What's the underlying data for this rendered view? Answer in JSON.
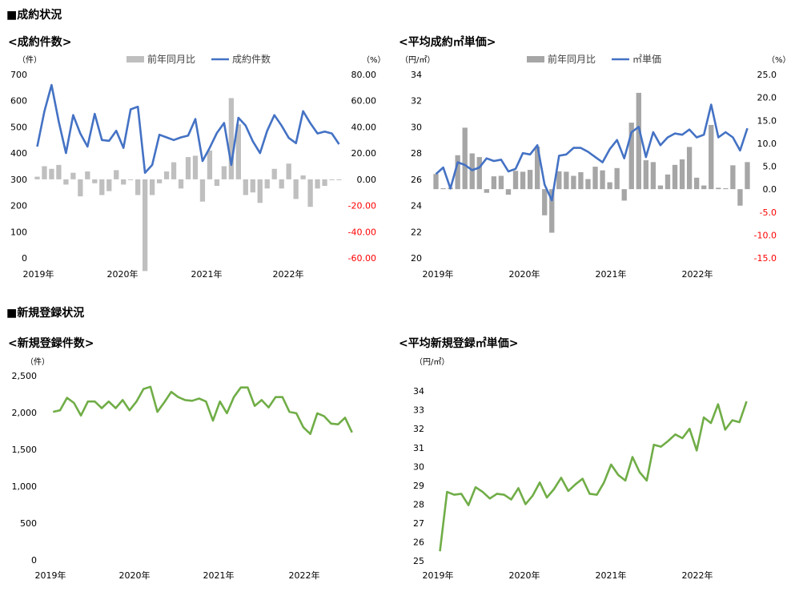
{
  "section_titles": {
    "contracts": "■成約状況",
    "registrations": "■新規登録状況"
  },
  "chart_data": [
    {
      "id": "contract-count",
      "type": "bar-line",
      "title": "<成約件数>",
      "left_unit": "（件）",
      "right_unit": "（%）",
      "legend": {
        "bar": "前年同月比",
        "line": "成約件数"
      },
      "year_labels": [
        "2019年",
        "2020年",
        "2021年",
        "2022年"
      ],
      "left_ticks": [
        "0",
        "100",
        "200",
        "300",
        "400",
        "500",
        "600",
        "700"
      ],
      "right_ticks": [
        "-60.00",
        "-40.00",
        "-20.00",
        "0.00",
        "20.00",
        "40.00",
        "60.00",
        "80.00"
      ],
      "left_range": [
        0,
        700
      ],
      "right_range": [
        -60,
        80
      ],
      "months": 43,
      "colors": {
        "bar": "#bfbfbf",
        "line": "#4472c4",
        "negative_tick": "#ff0000"
      },
      "series": [
        {
          "name": "成約件数",
          "axis": "left",
          "values": [
            425,
            560,
            660,
            520,
            400,
            545,
            475,
            425,
            550,
            450,
            447,
            485,
            420,
            567,
            577,
            325,
            355,
            470,
            460,
            450,
            460,
            467,
            530,
            370,
            420,
            477,
            515,
            355,
            535,
            505,
            445,
            400,
            485,
            545,
            505,
            458,
            438,
            560,
            514,
            475,
            482,
            475,
            434
          ]
        },
        {
          "name": "前年同月比",
          "axis": "right",
          "values": [
            2,
            10,
            8,
            11,
            -4,
            5,
            -13,
            6,
            -3,
            -12,
            -9,
            7,
            -4,
            0,
            -12,
            -70,
            -12,
            -3,
            6,
            13,
            -7,
            17,
            18,
            -17,
            22,
            -5,
            10,
            62,
            42,
            -12,
            -10,
            -18,
            -7,
            8,
            -7,
            12,
            -15,
            3,
            -21,
            -7,
            -5,
            0,
            0
          ]
        }
      ]
    },
    {
      "id": "avg-contract-price",
      "type": "bar-line",
      "title": "<平均成約㎡単価>",
      "left_unit": "（円/㎡）",
      "right_unit": "（%）",
      "legend": {
        "bar": "前年同月比",
        "line": "㎡単価"
      },
      "year_labels": [
        "2019年",
        "2020年",
        "2021年",
        "2022年"
      ],
      "left_ticks": [
        "20",
        "22",
        "24",
        "26",
        "28",
        "30",
        "32",
        "34"
      ],
      "right_ticks": [
        "-15.0",
        "-10.0",
        "-5.0",
        "0.0",
        "5.0",
        "10.0",
        "15.0",
        "20.0",
        "25.0"
      ],
      "left_range": [
        20,
        34
      ],
      "right_range": [
        -15,
        25
      ],
      "months": 44,
      "colors": {
        "bar": "#a6a6a6",
        "line": "#4472c4",
        "negative_tick": "#ff0000"
      },
      "series": [
        {
          "name": "㎡単価",
          "axis": "left",
          "values": [
            26.4,
            26.9,
            25.3,
            27.3,
            27.1,
            26.7,
            26.9,
            27.6,
            27.4,
            27.5,
            26.6,
            26.8,
            28.0,
            27.9,
            28.6,
            25.6,
            24.4,
            27.8,
            27.9,
            28.4,
            28.4,
            28.1,
            27.7,
            27.3,
            28.3,
            29.0,
            27.6,
            29.6,
            30.0,
            27.7,
            29.6,
            28.6,
            29.2,
            29.5,
            29.4,
            29.8,
            29.2,
            29.4,
            31.7,
            29.2,
            29.6,
            29.2,
            28.2,
            29.9
          ]
        },
        {
          "name": "前年同月比",
          "axis": "right",
          "values": [
            3.3,
            0.2,
            0.3,
            7.4,
            13.4,
            7.8,
            7,
            -0.8,
            2.8,
            2.9,
            -1.2,
            4,
            3.8,
            4.2,
            9.3,
            -5.7,
            -9.5,
            3.9,
            3.8,
            2.9,
            3.7,
            2.2,
            4.9,
            4.1,
            1.5,
            4.6,
            -2.5,
            14.5,
            21,
            6.3,
            5.9,
            0.8,
            3.2,
            5.3,
            6.5,
            9.2,
            2.5,
            0.8,
            14,
            0.3,
            0.2,
            5.2,
            -3.6,
            5.9
          ]
        }
      ]
    },
    {
      "id": "new-registrations",
      "type": "line",
      "title": "<新規登録件数>",
      "left_unit": "（件）",
      "year_labels": [
        "2019年",
        "2020年",
        "2021年",
        "2022年"
      ],
      "left_ticks": [
        "0",
        "500",
        "1,000",
        "1,500",
        "2,000",
        "2,500"
      ],
      "left_range": [
        0,
        2500
      ],
      "months": 44,
      "colors": {
        "line": "#70ad47"
      },
      "series": [
        {
          "name": "新規登録件数",
          "values": [
            2010,
            2030,
            2200,
            2130,
            1960,
            2150,
            2150,
            2060,
            2150,
            2060,
            2170,
            2030,
            2150,
            2320,
            2350,
            2010,
            2140,
            2280,
            2210,
            2170,
            2160,
            2190,
            2150,
            1890,
            2150,
            1990,
            2210,
            2340,
            2340,
            2090,
            2170,
            2070,
            2210,
            2210,
            2010,
            1990,
            1800,
            1710,
            1990,
            1950,
            1850,
            1840,
            1930,
            1730
          ]
        }
      ]
    },
    {
      "id": "avg-new-registration-price",
      "type": "line",
      "title": "<平均新規登録㎡単価>",
      "left_unit": "（円/㎡）",
      "year_labels": [
        "2019年",
        "2020年",
        "2021年",
        "2022年"
      ],
      "left_ticks": [
        "25",
        "26",
        "27",
        "28",
        "29",
        "30",
        "31",
        "32",
        "33",
        "34"
      ],
      "left_range": [
        25,
        34.6
      ],
      "months": 44,
      "colors": {
        "line": "#70ad47"
      },
      "series": [
        {
          "name": "平均新規登録㎡単価",
          "values": [
            25.5,
            28.65,
            28.5,
            28.55,
            27.95,
            28.9,
            28.65,
            28.3,
            28.55,
            28.5,
            28.25,
            28.85,
            28.0,
            28.45,
            29.15,
            28.35,
            28.8,
            29.4,
            28.7,
            29.05,
            29.35,
            28.55,
            28.5,
            29.15,
            30.1,
            29.55,
            29.25,
            30.5,
            29.7,
            29.25,
            31.15,
            31.05,
            31.35,
            31.7,
            31.5,
            32.0,
            30.85,
            32.6,
            32.3,
            33.3,
            31.95,
            32.45,
            32.35,
            33.45
          ]
        }
      ]
    }
  ]
}
